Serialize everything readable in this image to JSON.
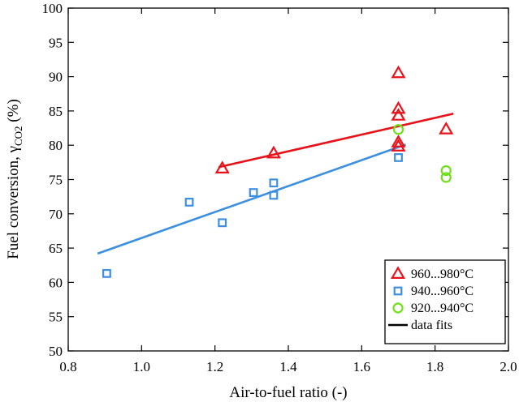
{
  "chart_data": {
    "type": "scatter",
    "xlabel": "Air-to-fuel ratio (-)",
    "ylabel": {
      "prefix": "Fuel conversion, γ",
      "subscript": "CO2",
      "suffix": " (%)"
    },
    "xlim": [
      0.8,
      2.0
    ],
    "ylim": [
      50,
      100
    ],
    "x_ticks": [
      "0.8",
      "1.0",
      "1.2",
      "1.4",
      "1.6",
      "1.8",
      "2.0"
    ],
    "y_ticks": [
      "50",
      "55",
      "60",
      "65",
      "70",
      "75",
      "80",
      "85",
      "90",
      "95",
      "100"
    ],
    "grid": false,
    "legend_position": "bottom-right",
    "series": [
      {
        "name": "960...980°C",
        "marker": "triangle",
        "color": "#e8131a",
        "points": [
          {
            "x": 1.22,
            "y": 76.6
          },
          {
            "x": 1.36,
            "y": 78.8
          },
          {
            "x": 1.7,
            "y": 90.5
          },
          {
            "x": 1.7,
            "y": 85.3
          },
          {
            "x": 1.7,
            "y": 84.3
          },
          {
            "x": 1.7,
            "y": 80.4
          },
          {
            "x": 1.7,
            "y": 79.8
          },
          {
            "x": 1.83,
            "y": 82.3
          }
        ]
      },
      {
        "name": "940...960°C",
        "marker": "square",
        "color": "#3d8fe0",
        "points": [
          {
            "x": 0.905,
            "y": 61.3
          },
          {
            "x": 1.13,
            "y": 71.7
          },
          {
            "x": 1.22,
            "y": 68.7
          },
          {
            "x": 1.305,
            "y": 73.1
          },
          {
            "x": 1.36,
            "y": 74.5
          },
          {
            "x": 1.36,
            "y": 72.7
          },
          {
            "x": 1.7,
            "y": 78.2
          }
        ]
      },
      {
        "name": "920...940°C",
        "marker": "circle",
        "color": "#6ee01a",
        "points": [
          {
            "x": 1.7,
            "y": 82.3
          },
          {
            "x": 1.83,
            "y": 76.3
          },
          {
            "x": 1.83,
            "y": 75.3
          }
        ]
      }
    ],
    "fits": [
      {
        "color": "#e8131a",
        "x": [
          1.21,
          1.85
        ],
        "y": [
          76.8,
          84.6
        ]
      },
      {
        "color": "#3d8fe0",
        "x": [
          0.88,
          1.72
        ],
        "y": [
          64.2,
          80.1
        ]
      }
    ],
    "legend_fit_label": "data fits",
    "legend_fit_color": "#000000"
  }
}
